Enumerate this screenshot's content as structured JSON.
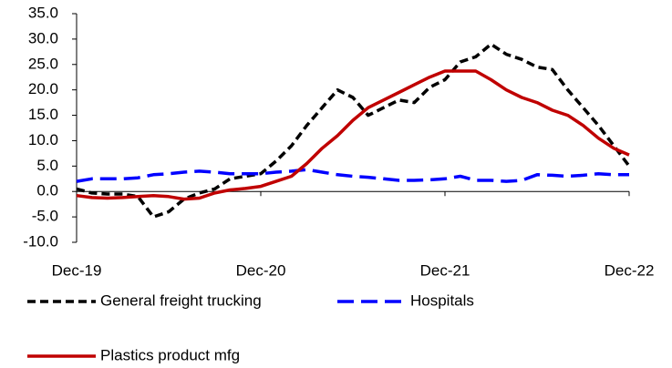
{
  "chart_data": {
    "type": "line",
    "categories": [
      "Dec-19",
      null,
      null,
      null,
      null,
      null,
      null,
      null,
      null,
      null,
      null,
      null,
      "Dec-20",
      null,
      null,
      null,
      null,
      null,
      null,
      null,
      null,
      null,
      null,
      null,
      "Dec-21",
      null,
      null,
      null,
      null,
      null,
      null,
      null,
      null,
      null,
      null,
      null,
      "Dec-22"
    ],
    "series": [
      {
        "name": "General freight trucking",
        "color": "#000000",
        "dash": true,
        "values": [
          0.5,
          -0.3,
          -0.5,
          -0.5,
          -1,
          -5,
          -4,
          -1.5,
          -0.3,
          0.5,
          2.5,
          3,
          3.5,
          6,
          9,
          13,
          16.5,
          20,
          18.5,
          15,
          16.5,
          18,
          17.5,
          20.5,
          22,
          25.5,
          26.5,
          29,
          27,
          26,
          24.5,
          24,
          20,
          16.5,
          13,
          9,
          5
        ]
      },
      {
        "name": "Hospitals",
        "color": "#0000ff",
        "dash": true,
        "values": [
          2.0,
          2.5,
          2.5,
          2.5,
          2.7,
          3.3,
          3.5,
          3.8,
          4.0,
          3.8,
          3.5,
          3.5,
          3.5,
          3.8,
          4.0,
          4.3,
          3.8,
          3.3,
          3.0,
          2.8,
          2.5,
          2.2,
          2.2,
          2.3,
          2.5,
          3.0,
          2.2,
          2.2,
          2.0,
          2.2,
          3.3,
          3.2,
          3.0,
          3.2,
          3.5,
          3.3,
          3.3
        ]
      },
      {
        "name": "Plastics product mfg",
        "color": "#c00000",
        "dash": false,
        "values": [
          -0.8,
          -1.2,
          -1.3,
          -1.2,
          -1,
          -0.8,
          -1.0,
          -1.5,
          -1.3,
          -0.3,
          0.3,
          0.6,
          1.0,
          2.0,
          3.0,
          5.5,
          8.5,
          11,
          14,
          16.5,
          18,
          19.5,
          21,
          22.5,
          23.7,
          23.7,
          23.7,
          22,
          20,
          18.5,
          17.5,
          16,
          15,
          13,
          10.5,
          8.5,
          7.2
        ]
      }
    ],
    "ylim": [
      -10,
      35
    ],
    "yticks": [
      {
        "value": -10,
        "label": "-10.0"
      },
      {
        "value": -5,
        "label": "-5.0"
      },
      {
        "value": 0,
        "label": "0.0"
      },
      {
        "value": 5,
        "label": "5.0"
      },
      {
        "value": 10,
        "label": "10.0"
      },
      {
        "value": 15,
        "label": "15.0"
      },
      {
        "value": 20,
        "label": "20.0"
      },
      {
        "value": 25,
        "label": "25.0"
      },
      {
        "value": 30,
        "label": "30.0"
      },
      {
        "value": 35,
        "label": "35.0"
      }
    ],
    "grid": false
  }
}
